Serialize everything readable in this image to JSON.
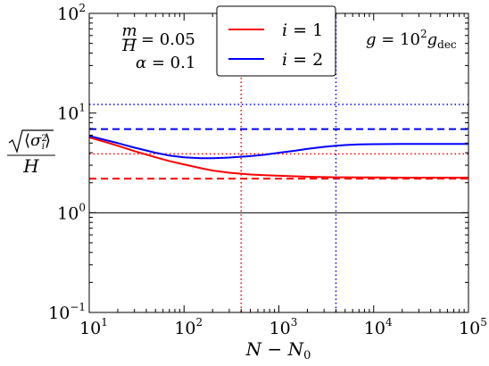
{
  "chart_data": {
    "type": "line",
    "xscale": "log",
    "yscale": "log",
    "xlim": [
      10,
      100000
    ],
    "ylim": [
      0.1,
      100
    ],
    "xlabel": "N − N₀",
    "ylabel": "√⟨σᵢ²⟩ / H",
    "x_ticks": [
      {
        "value": 10,
        "base": "10",
        "exp": "1"
      },
      {
        "value": 100,
        "base": "10",
        "exp": "2"
      },
      {
        "value": 1000,
        "base": "10",
        "exp": "3"
      },
      {
        "value": 10000,
        "base": "10",
        "exp": "4"
      },
      {
        "value": 100000,
        "base": "10",
        "exp": "5"
      }
    ],
    "y_ticks": [
      {
        "value": 0.1,
        "base": "10",
        "exp": "−1"
      },
      {
        "value": 1,
        "base": "10",
        "exp": "0"
      },
      {
        "value": 10,
        "base": "10",
        "exp": "1"
      },
      {
        "value": 100,
        "base": "10",
        "exp": "2"
      }
    ],
    "series": [
      {
        "name": "i = 1",
        "color": "#ff0000",
        "x": [
          10,
          15,
          20,
          30,
          50,
          70,
          100,
          150,
          200,
          300,
          500,
          700,
          1000,
          1500,
          2000,
          3000,
          4000,
          5000,
          7000,
          10000,
          20000,
          50000,
          100000
        ],
        "y": [
          5.7,
          5.1,
          4.7,
          4.15,
          3.6,
          3.3,
          3.05,
          2.8,
          2.65,
          2.52,
          2.42,
          2.38,
          2.35,
          2.32,
          2.3,
          2.28,
          2.27,
          2.27,
          2.26,
          2.26,
          2.25,
          2.25,
          2.25
        ]
      },
      {
        "name": "i = 2",
        "color": "#0000ff",
        "x": [
          10,
          15,
          20,
          30,
          50,
          70,
          100,
          150,
          200,
          300,
          500,
          700,
          1000,
          1500,
          2000,
          3000,
          4000,
          5000,
          7000,
          10000,
          20000,
          50000,
          100000
        ],
        "y": [
          5.9,
          5.35,
          5.0,
          4.5,
          4.0,
          3.75,
          3.6,
          3.52,
          3.52,
          3.58,
          3.7,
          3.82,
          4.0,
          4.2,
          4.38,
          4.58,
          4.7,
          4.78,
          4.85,
          4.88,
          4.9,
          4.9,
          4.9
        ]
      }
    ],
    "reference_lines": [
      {
        "orientation": "horizontal",
        "value": 1,
        "color": "#000000",
        "style": "solid"
      },
      {
        "orientation": "horizontal",
        "value": 2.2,
        "color": "#ff0000",
        "style": "dashed"
      },
      {
        "orientation": "horizontal",
        "value": 3.9,
        "color": "#ff0000",
        "style": "dotted"
      },
      {
        "orientation": "horizontal",
        "value": 6.9,
        "color": "#0000ff",
        "style": "dashed"
      },
      {
        "orientation": "horizontal",
        "value": 12.2,
        "color": "#0000ff",
        "style": "dotted"
      },
      {
        "orientation": "vertical",
        "value": 400,
        "color": "#ff0000",
        "style": "dotted"
      },
      {
        "orientation": "vertical",
        "value": 4000,
        "color": "#0000ff",
        "style": "dotted"
      }
    ],
    "annotations": {
      "left_line1": "m/H = 0.05",
      "left_line2": "α = 0.1",
      "right": "g = 10² g_dec"
    },
    "legend": {
      "placement": "top-center"
    },
    "grid": false
  }
}
